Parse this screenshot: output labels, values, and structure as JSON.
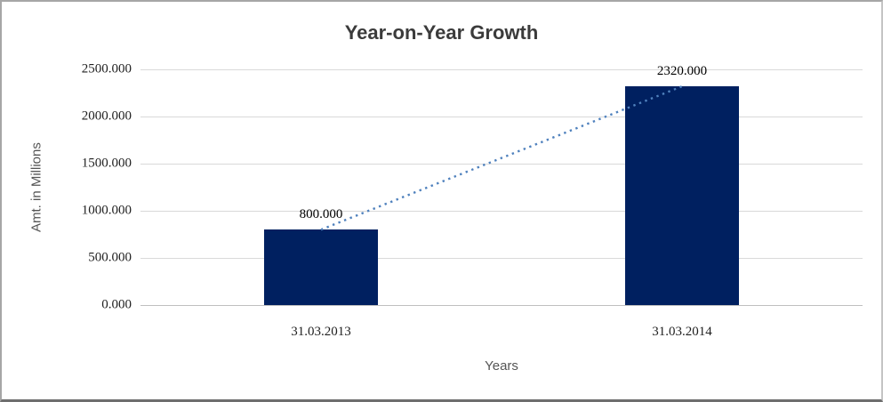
{
  "chart_data": {
    "type": "bar",
    "title": "Year-on-Year Growth",
    "xlabel": "Years",
    "ylabel": "Amt. in Millions",
    "categories": [
      "31.03.2013",
      "31.03.2014"
    ],
    "values": [
      800,
      2320
    ],
    "data_labels": [
      "800.000",
      "2320.000"
    ],
    "ylim": [
      0,
      2500
    ],
    "y_ticks": [
      0,
      500,
      1000,
      1500,
      2000,
      2500
    ],
    "y_tick_labels": [
      "0.000",
      "500.000",
      "1000.000",
      "1500.000",
      "2000.000",
      "2500.000"
    ],
    "grid": true,
    "legend": "none",
    "trendline": {
      "style": "dotted",
      "from": "31.03.2013",
      "to": "31.03.2014"
    },
    "colors": {
      "bar": "#002060",
      "trendline": "#4f81bd",
      "gridline": "#d9d9d9",
      "axis_line": "#bfbfbf",
      "title_text": "#3b3b3b",
      "tick_text": "#1f1f1f",
      "axis_title_text": "#555555"
    }
  }
}
